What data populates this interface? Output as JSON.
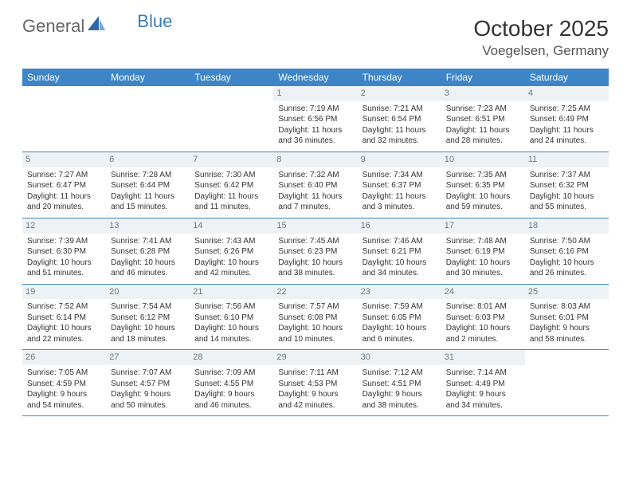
{
  "logo": {
    "text1": "General",
    "text2": "Blue"
  },
  "title": "October 2025",
  "location": "Voegelsen, Germany",
  "colors": {
    "header_bg": "#3d85c6",
    "header_fg": "#ffffff",
    "daynum_bg": "#eef2f5",
    "daynum_fg": "#6a7a88",
    "row_border": "#3d85c6",
    "text": "#333333",
    "logo_gray": "#666666",
    "logo_blue": "#3d7bb8"
  },
  "day_names": [
    "Sunday",
    "Monday",
    "Tuesday",
    "Wednesday",
    "Thursday",
    "Friday",
    "Saturday"
  ],
  "weeks": [
    [
      {
        "n": "",
        "sr": "",
        "ss": "",
        "d1": "",
        "d2": ""
      },
      {
        "n": "",
        "sr": "",
        "ss": "",
        "d1": "",
        "d2": ""
      },
      {
        "n": "",
        "sr": "",
        "ss": "",
        "d1": "",
        "d2": ""
      },
      {
        "n": "1",
        "sr": "Sunrise: 7:19 AM",
        "ss": "Sunset: 6:56 PM",
        "d1": "Daylight: 11 hours",
        "d2": "and 36 minutes."
      },
      {
        "n": "2",
        "sr": "Sunrise: 7:21 AM",
        "ss": "Sunset: 6:54 PM",
        "d1": "Daylight: 11 hours",
        "d2": "and 32 minutes."
      },
      {
        "n": "3",
        "sr": "Sunrise: 7:23 AM",
        "ss": "Sunset: 6:51 PM",
        "d1": "Daylight: 11 hours",
        "d2": "and 28 minutes."
      },
      {
        "n": "4",
        "sr": "Sunrise: 7:25 AM",
        "ss": "Sunset: 6:49 PM",
        "d1": "Daylight: 11 hours",
        "d2": "and 24 minutes."
      }
    ],
    [
      {
        "n": "5",
        "sr": "Sunrise: 7:27 AM",
        "ss": "Sunset: 6:47 PM",
        "d1": "Daylight: 11 hours",
        "d2": "and 20 minutes."
      },
      {
        "n": "6",
        "sr": "Sunrise: 7:28 AM",
        "ss": "Sunset: 6:44 PM",
        "d1": "Daylight: 11 hours",
        "d2": "and 15 minutes."
      },
      {
        "n": "7",
        "sr": "Sunrise: 7:30 AM",
        "ss": "Sunset: 6:42 PM",
        "d1": "Daylight: 11 hours",
        "d2": "and 11 minutes."
      },
      {
        "n": "8",
        "sr": "Sunrise: 7:32 AM",
        "ss": "Sunset: 6:40 PM",
        "d1": "Daylight: 11 hours",
        "d2": "and 7 minutes."
      },
      {
        "n": "9",
        "sr": "Sunrise: 7:34 AM",
        "ss": "Sunset: 6:37 PM",
        "d1": "Daylight: 11 hours",
        "d2": "and 3 minutes."
      },
      {
        "n": "10",
        "sr": "Sunrise: 7:35 AM",
        "ss": "Sunset: 6:35 PM",
        "d1": "Daylight: 10 hours",
        "d2": "and 59 minutes."
      },
      {
        "n": "11",
        "sr": "Sunrise: 7:37 AM",
        "ss": "Sunset: 6:32 PM",
        "d1": "Daylight: 10 hours",
        "d2": "and 55 minutes."
      }
    ],
    [
      {
        "n": "12",
        "sr": "Sunrise: 7:39 AM",
        "ss": "Sunset: 6:30 PM",
        "d1": "Daylight: 10 hours",
        "d2": "and 51 minutes."
      },
      {
        "n": "13",
        "sr": "Sunrise: 7:41 AM",
        "ss": "Sunset: 6:28 PM",
        "d1": "Daylight: 10 hours",
        "d2": "and 46 minutes."
      },
      {
        "n": "14",
        "sr": "Sunrise: 7:43 AM",
        "ss": "Sunset: 6:26 PM",
        "d1": "Daylight: 10 hours",
        "d2": "and 42 minutes."
      },
      {
        "n": "15",
        "sr": "Sunrise: 7:45 AM",
        "ss": "Sunset: 6:23 PM",
        "d1": "Daylight: 10 hours",
        "d2": "and 38 minutes."
      },
      {
        "n": "16",
        "sr": "Sunrise: 7:46 AM",
        "ss": "Sunset: 6:21 PM",
        "d1": "Daylight: 10 hours",
        "d2": "and 34 minutes."
      },
      {
        "n": "17",
        "sr": "Sunrise: 7:48 AM",
        "ss": "Sunset: 6:19 PM",
        "d1": "Daylight: 10 hours",
        "d2": "and 30 minutes."
      },
      {
        "n": "18",
        "sr": "Sunrise: 7:50 AM",
        "ss": "Sunset: 6:16 PM",
        "d1": "Daylight: 10 hours",
        "d2": "and 26 minutes."
      }
    ],
    [
      {
        "n": "19",
        "sr": "Sunrise: 7:52 AM",
        "ss": "Sunset: 6:14 PM",
        "d1": "Daylight: 10 hours",
        "d2": "and 22 minutes."
      },
      {
        "n": "20",
        "sr": "Sunrise: 7:54 AM",
        "ss": "Sunset: 6:12 PM",
        "d1": "Daylight: 10 hours",
        "d2": "and 18 minutes."
      },
      {
        "n": "21",
        "sr": "Sunrise: 7:56 AM",
        "ss": "Sunset: 6:10 PM",
        "d1": "Daylight: 10 hours",
        "d2": "and 14 minutes."
      },
      {
        "n": "22",
        "sr": "Sunrise: 7:57 AM",
        "ss": "Sunset: 6:08 PM",
        "d1": "Daylight: 10 hours",
        "d2": "and 10 minutes."
      },
      {
        "n": "23",
        "sr": "Sunrise: 7:59 AM",
        "ss": "Sunset: 6:05 PM",
        "d1": "Daylight: 10 hours",
        "d2": "and 6 minutes."
      },
      {
        "n": "24",
        "sr": "Sunrise: 8:01 AM",
        "ss": "Sunset: 6:03 PM",
        "d1": "Daylight: 10 hours",
        "d2": "and 2 minutes."
      },
      {
        "n": "25",
        "sr": "Sunrise: 8:03 AM",
        "ss": "Sunset: 6:01 PM",
        "d1": "Daylight: 9 hours",
        "d2": "and 58 minutes."
      }
    ],
    [
      {
        "n": "26",
        "sr": "Sunrise: 7:05 AM",
        "ss": "Sunset: 4:59 PM",
        "d1": "Daylight: 9 hours",
        "d2": "and 54 minutes."
      },
      {
        "n": "27",
        "sr": "Sunrise: 7:07 AM",
        "ss": "Sunset: 4:57 PM",
        "d1": "Daylight: 9 hours",
        "d2": "and 50 minutes."
      },
      {
        "n": "28",
        "sr": "Sunrise: 7:09 AM",
        "ss": "Sunset: 4:55 PM",
        "d1": "Daylight: 9 hours",
        "d2": "and 46 minutes."
      },
      {
        "n": "29",
        "sr": "Sunrise: 7:11 AM",
        "ss": "Sunset: 4:53 PM",
        "d1": "Daylight: 9 hours",
        "d2": "and 42 minutes."
      },
      {
        "n": "30",
        "sr": "Sunrise: 7:12 AM",
        "ss": "Sunset: 4:51 PM",
        "d1": "Daylight: 9 hours",
        "d2": "and 38 minutes."
      },
      {
        "n": "31",
        "sr": "Sunrise: 7:14 AM",
        "ss": "Sunset: 4:49 PM",
        "d1": "Daylight: 9 hours",
        "d2": "and 34 minutes."
      },
      {
        "n": "",
        "sr": "",
        "ss": "",
        "d1": "",
        "d2": ""
      }
    ]
  ]
}
